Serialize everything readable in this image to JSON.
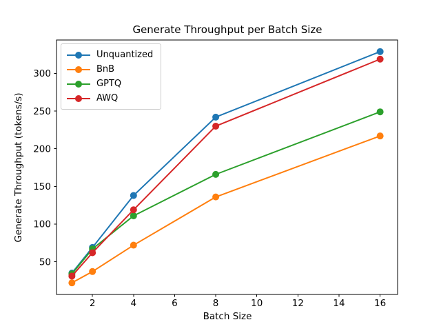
{
  "figure": {
    "background_color": "#ffffff",
    "axis_color": "#000000",
    "text_color": "#000000"
  },
  "chart_data": {
    "type": "line",
    "title": "Generate Throughput per Batch Size",
    "xlabel": "Batch Size",
    "ylabel": "Generate Throughput (tokens/s)",
    "x": [
      1,
      2,
      4,
      8,
      16
    ],
    "series": [
      {
        "name": "Unquantized",
        "color": "#1f77b4",
        "values": [
          35,
          69,
          138,
          242,
          329
        ]
      },
      {
        "name": "BnB",
        "color": "#ff7f0e",
        "values": [
          22,
          37,
          72,
          136,
          217
        ]
      },
      {
        "name": "GPTQ",
        "color": "#2ca02c",
        "values": [
          34,
          67,
          111,
          166,
          249
        ]
      },
      {
        "name": "AWQ",
        "color": "#d62728",
        "values": [
          31,
          62,
          119,
          230,
          319
        ]
      }
    ],
    "xticks": [
      2,
      4,
      6,
      8,
      10,
      12,
      14,
      16
    ],
    "yticks": [
      50,
      100,
      150,
      200,
      250,
      300
    ],
    "xlim": [
      0.25,
      16.85
    ],
    "ylim": [
      6.6,
      344.4
    ],
    "grid": false,
    "marker": "circle",
    "legend": {
      "position": "upper-left",
      "entries": [
        "Unquantized",
        "BnB",
        "GPTQ",
        "AWQ"
      ]
    }
  }
}
